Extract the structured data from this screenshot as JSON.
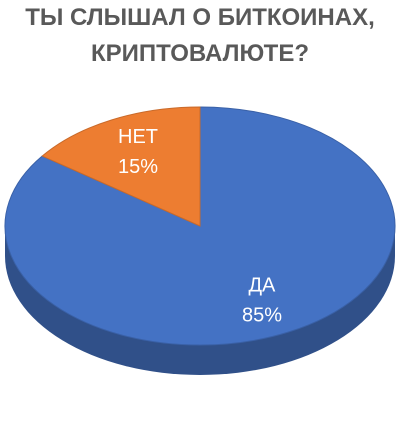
{
  "chart_data": {
    "type": "pie",
    "title": "ТЫ СЛЫШАЛ О БИТКОИНАХ, КРИПТОВАЛЮТЕ?",
    "categories": [
      "ДА",
      "НЕТ"
    ],
    "values": [
      85,
      15
    ],
    "value_labels": [
      "85%",
      "15%"
    ],
    "colors": [
      "#4472c4",
      "#ed7d31"
    ]
  }
}
